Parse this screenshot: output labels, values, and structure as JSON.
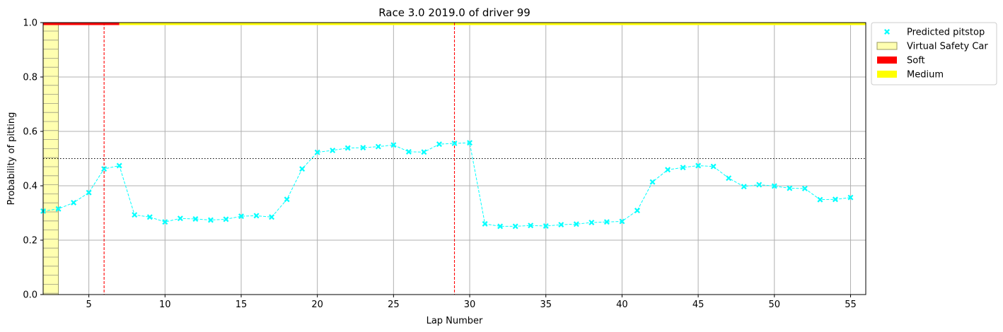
{
  "chart_data": {
    "type": "line",
    "title": "Race 3.0 2019.0 of driver 99",
    "xlabel": "Lap Number",
    "ylabel": "Probability of pitting",
    "xlim": [
      2,
      56
    ],
    "ylim": [
      0,
      1
    ],
    "xticks": [
      5,
      10,
      15,
      20,
      25,
      30,
      35,
      40,
      45,
      50,
      55
    ],
    "yticks": [
      0.0,
      0.2,
      0.4,
      0.6,
      0.8,
      1.0
    ],
    "ytick_labels": [
      "0.0",
      "0.2",
      "0.4",
      "0.6",
      "0.8",
      "1.0"
    ],
    "grid": true,
    "legend_position": "outside upper right",
    "threshold": 0.5,
    "pitstop_laps": [
      6,
      29
    ],
    "vsc_laps": [
      2,
      3
    ],
    "tyre_stints": [
      {
        "compound": "Soft",
        "start": 2,
        "end": 7,
        "color": "#ff0000"
      },
      {
        "compound": "Medium",
        "start": 7,
        "end": 56,
        "color": "#ffff00"
      }
    ],
    "series": [
      {
        "name": "Predicted pitstop",
        "color": "#00ffff",
        "x": [
          2,
          3,
          4,
          5,
          6,
          7,
          8,
          9,
          10,
          11,
          12,
          13,
          14,
          15,
          16,
          17,
          18,
          19,
          20,
          21,
          22,
          23,
          24,
          25,
          26,
          27,
          28,
          29,
          30,
          31,
          32,
          33,
          34,
          35,
          36,
          37,
          38,
          39,
          40,
          41,
          42,
          43,
          44,
          45,
          46,
          47,
          48,
          49,
          50,
          51,
          52,
          53,
          54,
          55
        ],
        "values": [
          0.307,
          0.315,
          0.338,
          0.375,
          0.462,
          0.474,
          0.293,
          0.285,
          0.267,
          0.28,
          0.278,
          0.274,
          0.277,
          0.288,
          0.29,
          0.285,
          0.35,
          0.462,
          0.523,
          0.53,
          0.539,
          0.54,
          0.544,
          0.55,
          0.525,
          0.524,
          0.553,
          0.556,
          0.558,
          0.26,
          0.251,
          0.251,
          0.254,
          0.252,
          0.257,
          0.259,
          0.265,
          0.267,
          0.269,
          0.309,
          0.414,
          0.459,
          0.467,
          0.474,
          0.471,
          0.428,
          0.397,
          0.404,
          0.399,
          0.391,
          0.39,
          0.349,
          0.35,
          0.357
        ]
      }
    ],
    "legend": [
      {
        "label": "Predicted pitstop",
        "kind": "marker",
        "color": "#00ffff"
      },
      {
        "label": "Virtual Safety Car",
        "kind": "patch",
        "color": "#ffffb0"
      },
      {
        "label": "Soft",
        "kind": "patch",
        "color": "#ff0000"
      },
      {
        "label": "Medium",
        "kind": "patch",
        "color": "#ffff00"
      }
    ]
  }
}
